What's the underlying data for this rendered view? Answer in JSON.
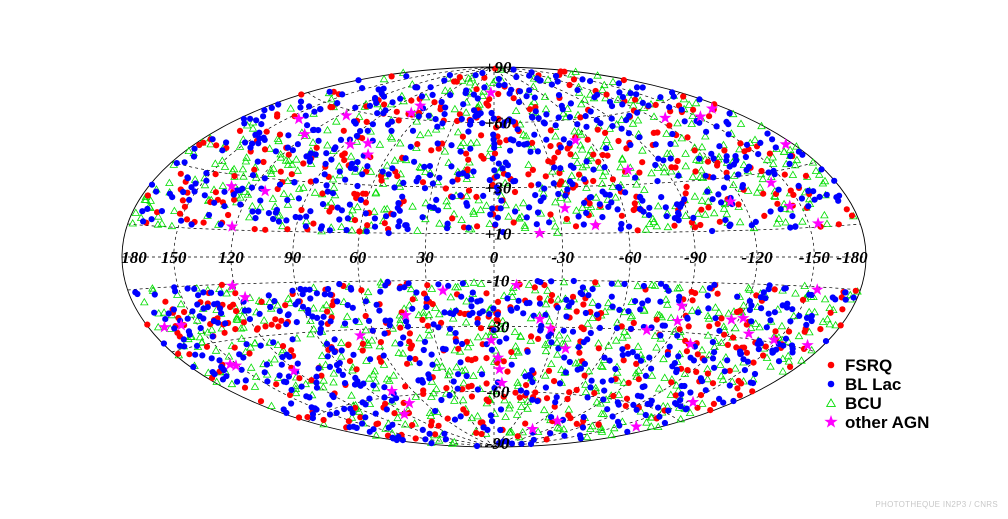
{
  "credit": "PHOTOTHEQUE IN2P3 / CNRS",
  "chart_data": {
    "type": "scatter",
    "projection": "hammer-aitoff",
    "coordinate_system": "galactic",
    "grid": true,
    "legend_position": "bottom-right",
    "x_ticks": [
      "180",
      "150",
      "120",
      "90",
      "60",
      "30",
      "0",
      "-30",
      "-60",
      "-90",
      "-120",
      "-150",
      "-180"
    ],
    "x_tick_values": [
      180,
      150,
      120,
      90,
      60,
      30,
      0,
      -30,
      -60,
      -90,
      -120,
      -150,
      -180
    ],
    "y_ticks": [
      "+90",
      "+60",
      "+30",
      "+10",
      "-10",
      "-30",
      "-60",
      "-90"
    ],
    "y_tick_values": [
      90,
      60,
      30,
      10,
      -10,
      -30,
      -60,
      -90
    ],
    "lat_exclusion_range": [
      -10,
      10
    ],
    "series": [
      {
        "name": "FSRQ",
        "marker": "dot",
        "color": "#ff0000",
        "approx_count": 650
      },
      {
        "name": "BL Lac",
        "marker": "dot",
        "color": "#0000ff",
        "approx_count": 1050
      },
      {
        "name": "BCU",
        "marker": "open-triangle",
        "color": "#00dd00",
        "approx_count": 1000
      },
      {
        "name": "other AGN",
        "marker": "star",
        "color": "#ff00ff",
        "approx_count": 60
      }
    ]
  }
}
